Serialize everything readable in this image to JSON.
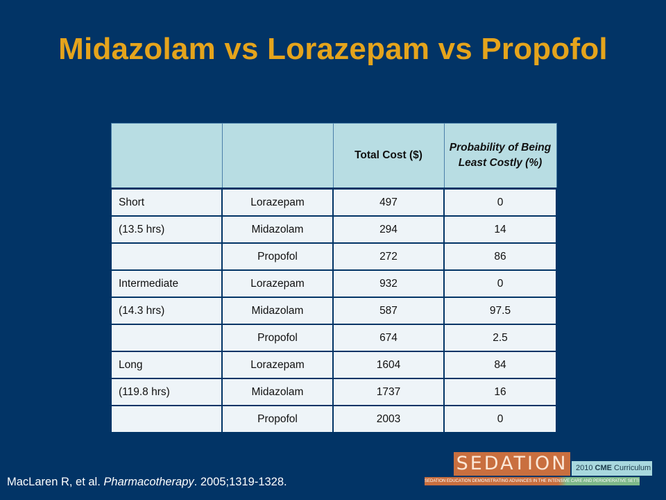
{
  "title": "Midazolam vs Lorazepam vs Propofol",
  "table": {
    "headers": [
      "",
      "",
      "Total Cost ($)",
      "Probability of Being Least Costly (%)"
    ],
    "rows": [
      [
        "Short",
        "Lorazepam",
        "497",
        "0"
      ],
      [
        "(13.5 hrs)",
        "Midazolam",
        "294",
        "14"
      ],
      [
        "",
        "Propofol",
        "272",
        "86"
      ],
      [
        "Intermediate",
        "Lorazepam",
        "932",
        "0"
      ],
      [
        "(14.3 hrs)",
        "Midazolam",
        "587",
        "97.5"
      ],
      [
        "",
        "Propofol",
        "674",
        "2.5"
      ],
      [
        "Long",
        "Lorazepam",
        "1604",
        "84"
      ],
      [
        "(119.8 hrs)",
        "Midazolam",
        "1737",
        "16"
      ],
      [
        "",
        "Propofol",
        "2003",
        "0"
      ]
    ]
  },
  "citation": {
    "authors": "MacLaren R, et al. ",
    "journal": "Pharmacotherapy",
    "details": ". 2005;1319-1328."
  },
  "logo": {
    "word": "SEDATION",
    "cme_year": "2010 ",
    "cme_bold": "CME",
    "cme_rest": " Curriculum",
    "tagline": "SEDATION EDUCATION DEMONSTRATING ADVANCES IN THE INTENSIVE CARE AND PERIOPERATIVE SETTINGS"
  },
  "colors": {
    "background": "#023466",
    "title": "#e5a41c",
    "header_fill": "#b8dde3",
    "cell_fill": "#eef4f8"
  }
}
